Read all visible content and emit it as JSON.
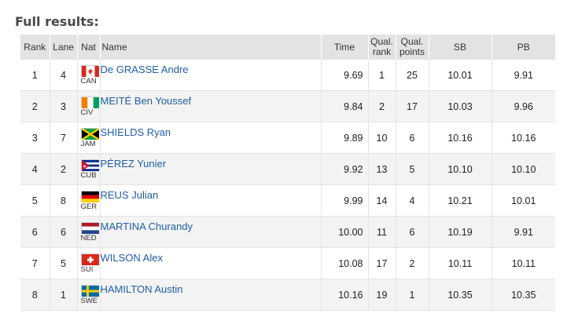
{
  "heading": "Full results:",
  "columns": {
    "rank": "Rank",
    "lane": "Lane",
    "nat": "Nat",
    "name": "Name",
    "time": "Time",
    "qual_rank_1": "Qual.",
    "qual_rank_2": "rank",
    "qual_points_1": "Qual.",
    "qual_points_2": "points",
    "sb": "SB",
    "pb": "PB"
  },
  "rows": [
    {
      "rank": "1",
      "lane": "4",
      "nat": "CAN",
      "flag_icon": "canada-flag-icon",
      "name": "De GRASSE Andre",
      "time": "9.69",
      "qual_rank": "1",
      "qual_points": "25",
      "sb": "10.01",
      "pb": "9.91"
    },
    {
      "rank": "2",
      "lane": "3",
      "nat": "CIV",
      "flag_icon": "ivory-coast-flag-icon",
      "name": "MEITÉ Ben Youssef",
      "time": "9.84",
      "qual_rank": "2",
      "qual_points": "17",
      "sb": "10.03",
      "pb": "9.96"
    },
    {
      "rank": "3",
      "lane": "7",
      "nat": "JAM",
      "flag_icon": "jamaica-flag-icon",
      "name": "SHIELDS Ryan",
      "time": "9.89",
      "qual_rank": "10",
      "qual_points": "6",
      "sb": "10.16",
      "pb": "10.16"
    },
    {
      "rank": "4",
      "lane": "2",
      "nat": "CUB",
      "flag_icon": "cuba-flag-icon",
      "name": "PÉREZ Yunier",
      "time": "9.92",
      "qual_rank": "13",
      "qual_points": "5",
      "sb": "10.10",
      "pb": "10.10"
    },
    {
      "rank": "5",
      "lane": "8",
      "nat": "GER",
      "flag_icon": "germany-flag-icon",
      "name": "REUS Julian",
      "time": "9.99",
      "qual_rank": "14",
      "qual_points": "4",
      "sb": "10.21",
      "pb": "10.01"
    },
    {
      "rank": "6",
      "lane": "6",
      "nat": "NED",
      "flag_icon": "netherlands-flag-icon",
      "name": "MARTINA Churandy",
      "time": "10.00",
      "qual_rank": "11",
      "qual_points": "6",
      "sb": "10.19",
      "pb": "9.91"
    },
    {
      "rank": "7",
      "lane": "5",
      "nat": "SUI",
      "flag_icon": "switzerland-flag-icon",
      "name": "WILSON Alex",
      "time": "10.08",
      "qual_rank": "17",
      "qual_points": "2",
      "sb": "10.11",
      "pb": "10.11"
    },
    {
      "rank": "8",
      "lane": "1",
      "nat": "SWE",
      "flag_icon": "sweden-flag-icon",
      "name": "HAMILTON Austin",
      "time": "10.16",
      "qual_rank": "19",
      "qual_points": "1",
      "sb": "10.35",
      "pb": "10.35"
    }
  ]
}
